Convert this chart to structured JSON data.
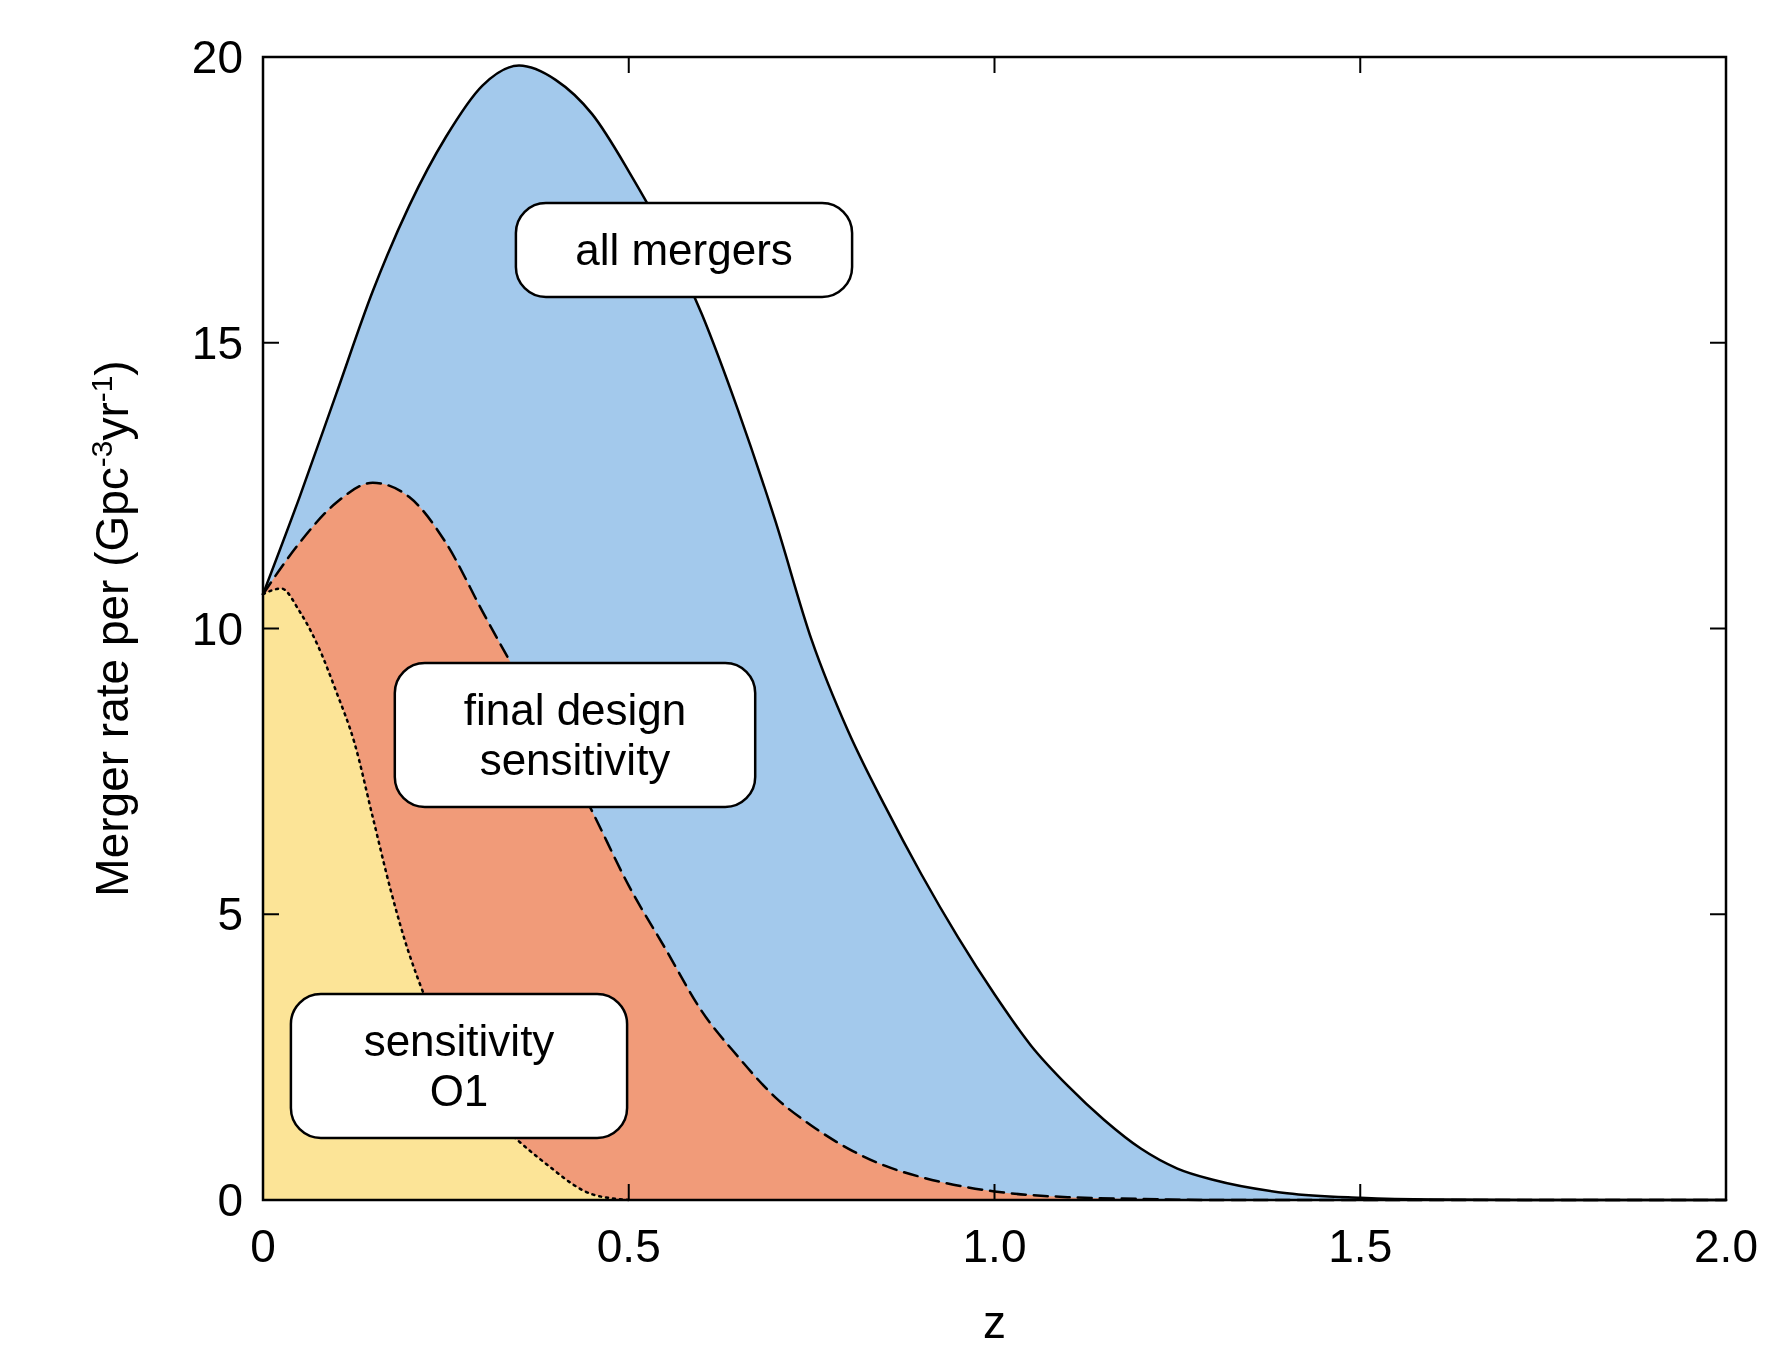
{
  "chart_data": {
    "type": "area",
    "xlabel": "z",
    "ylabel": "Merger rate per (Gpc$^{-3}$yr$^{-1}$)",
    "xlim": [
      0,
      2
    ],
    "ylim": [
      0,
      20
    ],
    "xticks": [
      0,
      0.5,
      {
        "value": 1,
        "label": "1.0"
      },
      1.5,
      {
        "value": 2,
        "label": "2.0"
      }
    ],
    "yticks": [
      0,
      5,
      10,
      15,
      20
    ],
    "grid": false,
    "series": [
      {
        "name": "all mergers",
        "color": "#a3c9ec",
        "line_style": "solid",
        "x": [
          0,
          0.05,
          0.1,
          0.15,
          0.2,
          0.25,
          0.3,
          0.35,
          0.4,
          0.45,
          0.5,
          0.55,
          0.6,
          0.65,
          0.7,
          0.75,
          0.8,
          0.85,
          0.9,
          0.95,
          1.0,
          1.05,
          1.1,
          1.15,
          1.2,
          1.25,
          1.3,
          1.4,
          1.5,
          1.6,
          1.8,
          2.0
        ],
        "values": [
          10.6,
          12.3,
          14.1,
          15.9,
          17.4,
          18.6,
          19.5,
          19.85,
          19.6,
          19.0,
          18.0,
          null,
          15.5,
          13.8,
          11.9,
          9.8,
          8.2,
          6.9,
          5.7,
          4.6,
          3.6,
          2.7,
          2.0,
          1.4,
          0.9,
          0.55,
          0.35,
          0.12,
          0.04,
          0.01,
          0,
          0
        ]
      },
      {
        "name": "final design\nsensitivity",
        "color": "#f19b79",
        "line_style": "dashed",
        "x": [
          0,
          0.05,
          0.1,
          0.15,
          0.2,
          0.25,
          0.3,
          0.35,
          0.4,
          0.45,
          0.5,
          0.55,
          0.6,
          0.65,
          0.7,
          0.75,
          0.8,
          0.85,
          0.9,
          1.0,
          1.1,
          1.2,
          1.3,
          2.0
        ],
        "values": [
          10.6,
          11.5,
          12.2,
          12.55,
          12.3,
          11.5,
          10.3,
          null,
          null,
          6.8,
          5.5,
          4.4,
          3.3,
          2.5,
          1.8,
          1.3,
          0.9,
          0.6,
          0.4,
          0.15,
          0.05,
          0.02,
          0,
          0
        ]
      },
      {
        "name": "sensitivity\nO1",
        "color": "#fce497",
        "line_style": "dotted",
        "x": [
          0,
          0.025,
          0.05,
          0.075,
          0.1,
          0.125,
          0.15,
          0.175,
          0.2,
          0.25,
          0.3,
          0.35,
          0.4,
          0.45,
          0.5
        ],
        "values": [
          10.6,
          10.7,
          10.3,
          9.7,
          8.9,
          8.0,
          6.7,
          5.4,
          4.3,
          null,
          null,
          null,
          0.5,
          0.1,
          0
        ]
      }
    ]
  }
}
